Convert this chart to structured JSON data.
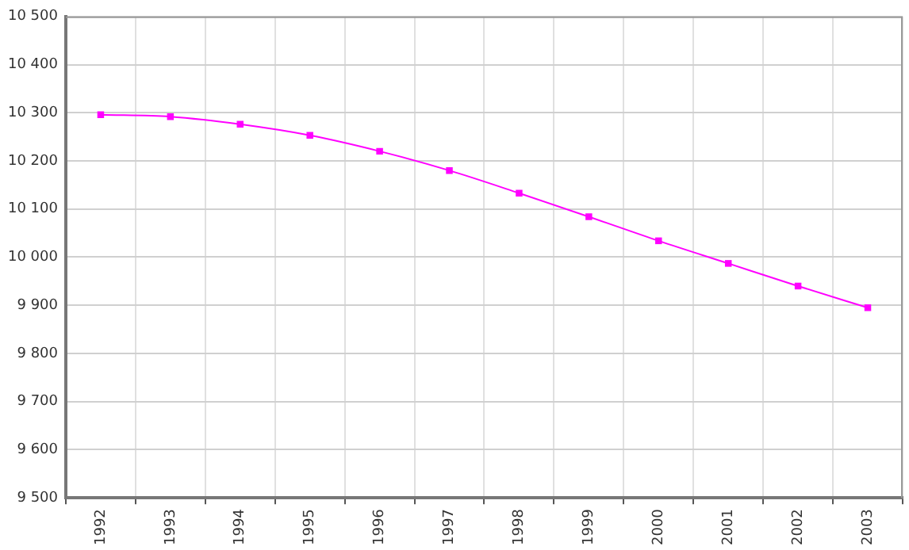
{
  "chart_data": {
    "type": "line",
    "categories": [
      "1992",
      "1993",
      "1994",
      "1995",
      "1996",
      "1997",
      "1998",
      "1999",
      "2000",
      "2001",
      "2002",
      "2003"
    ],
    "series": [
      {
        "color": "#ff00ff",
        "values": [
          10296,
          10292,
          10276,
          10253,
          10220,
          10180,
          10133,
          10084,
          10034,
          9987,
          9940,
          9895
        ]
      }
    ],
    "ylim": [
      9500,
      10500
    ],
    "yticks": [
      {
        "value": 9500,
        "label": "9 500"
      },
      {
        "value": 9600,
        "label": "9 600"
      },
      {
        "value": 9700,
        "label": "9 700"
      },
      {
        "value": 9800,
        "label": "9 800"
      },
      {
        "value": 9900,
        "label": "9 900"
      },
      {
        "value": 10000,
        "label": "10 000"
      },
      {
        "value": 10100,
        "label": "10 100"
      },
      {
        "value": 10200,
        "label": "10 200"
      },
      {
        "value": 10300,
        "label": "10 300"
      },
      {
        "value": 10400,
        "label": "10 400"
      },
      {
        "value": 10500,
        "label": "10 500"
      }
    ],
    "grid": true,
    "legend": false,
    "marker": "square",
    "line_style": "solid"
  }
}
